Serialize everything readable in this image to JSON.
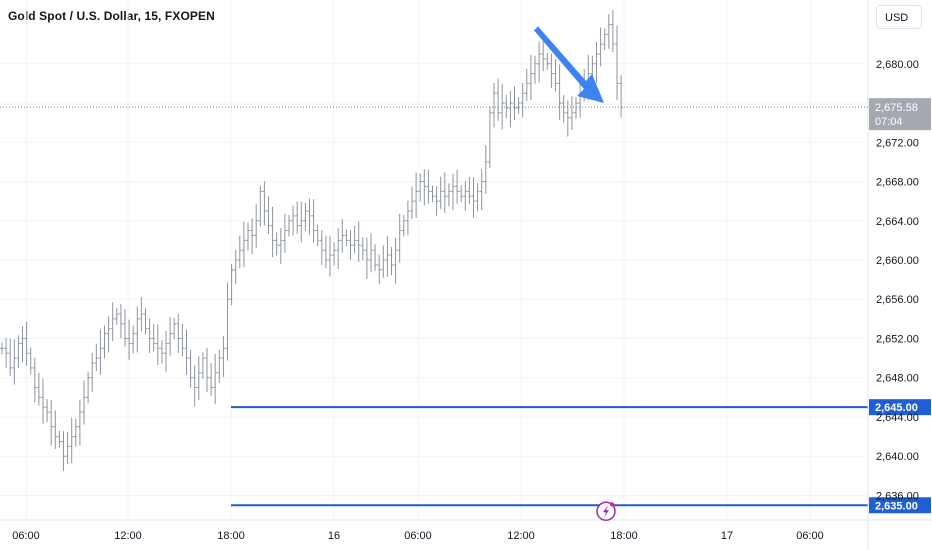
{
  "header": {
    "title": "Gold Spot / U.S. Dollar, 15, FXOPEN"
  },
  "currency_button": {
    "label": "USD"
  },
  "price_tag": {
    "price": "2,675.58",
    "countdown": "07:04"
  },
  "chart_data": {
    "type": "ohlc",
    "symbol": "Gold Spot / U.S. Dollar",
    "interval": "15",
    "broker": "FXOPEN",
    "currency": "USD",
    "y_ticks": [
      "2,680.00",
      "2,676.00",
      "2,672.00",
      "2,668.00",
      "2,664.00",
      "2,660.00",
      "2,656.00",
      "2,652.00",
      "2,648.00",
      "2,644.00",
      "2,640.00",
      "2,636.00"
    ],
    "x_ticks": [
      "06:00",
      "12:00",
      "18:00",
      "16",
      "06:00",
      "12:00",
      "18:00",
      "17",
      "06:00"
    ],
    "ylim": [
      2633.5,
      2686.5
    ],
    "current_price": 2675.58,
    "horizontal_levels": [
      {
        "price": 2645.0,
        "label": "2,645.00",
        "color": "#1e5fd3"
      },
      {
        "price": 2635.0,
        "label": "2,635.00",
        "color": "#1e5fd3"
      }
    ],
    "arrow": {
      "from_price": 2683.4,
      "to_price": 2676.0,
      "color": "#3d83f3"
    },
    "bar_color": "#8e939e",
    "grid": true,
    "price_series_closes": [
      2651,
      2650.5,
      2649,
      2650,
      2651.5,
      2652,
      2650.5,
      2649,
      2647,
      2646,
      2645,
      2644.5,
      2643,
      2642,
      2641.5,
      2640,
      2641,
      2642,
      2643,
      2644.5,
      2646,
      2648,
      2649.5,
      2650,
      2651,
      2652.5,
      2653,
      2654,
      2654.5,
      2653.5,
      2652,
      2651.5,
      2652.5,
      2654,
      2654.5,
      2653,
      2652,
      2651.5,
      2651,
      2650.5,
      2651.5,
      2652.5,
      2653.5,
      2652,
      2651,
      2650,
      2648,
      2647,
      2648.5,
      2650,
      2648,
      2647,
      2648.5,
      2650,
      2651,
      2656,
      2659,
      2660,
      2661,
      2662,
      2663,
      2662.5,
      2664,
      2667,
      2665,
      2663.5,
      2662,
      2661.5,
      2662,
      2663,
      2664,
      2664.5,
      2663.5,
      2664,
      2665,
      2664.5,
      2663,
      2662,
      2661,
      2660,
      2660.5,
      2661,
      2662,
      2662.5,
      2662,
      2661.5,
      2662,
      2661.5,
      2661,
      2660,
      2661,
      2659.5,
      2659,
      2660,
      2660.5,
      2659.5,
      2661,
      2663,
      2664,
      2665,
      2666,
      2667,
      2668,
      2667.5,
      2667,
      2666.5,
      2666,
      2667,
      2666.5,
      2667,
      2667.5,
      2667,
      2666.5,
      2667,
      2666.5,
      2666,
      2667,
      2668,
      2670,
      2675,
      2677,
      2675,
      2676,
      2675.5,
      2676,
      2675.5,
      2676,
      2677,
      2678,
      2679,
      2680,
      2681,
      2680.5,
      2680,
      2679,
      2678,
      2676,
      2675,
      2674.5,
      2675,
      2676,
      2677,
      2678,
      2679,
      2680,
      2681,
      2682,
      2683,
      2684,
      2682,
      2678,
      2675.58
    ]
  }
}
